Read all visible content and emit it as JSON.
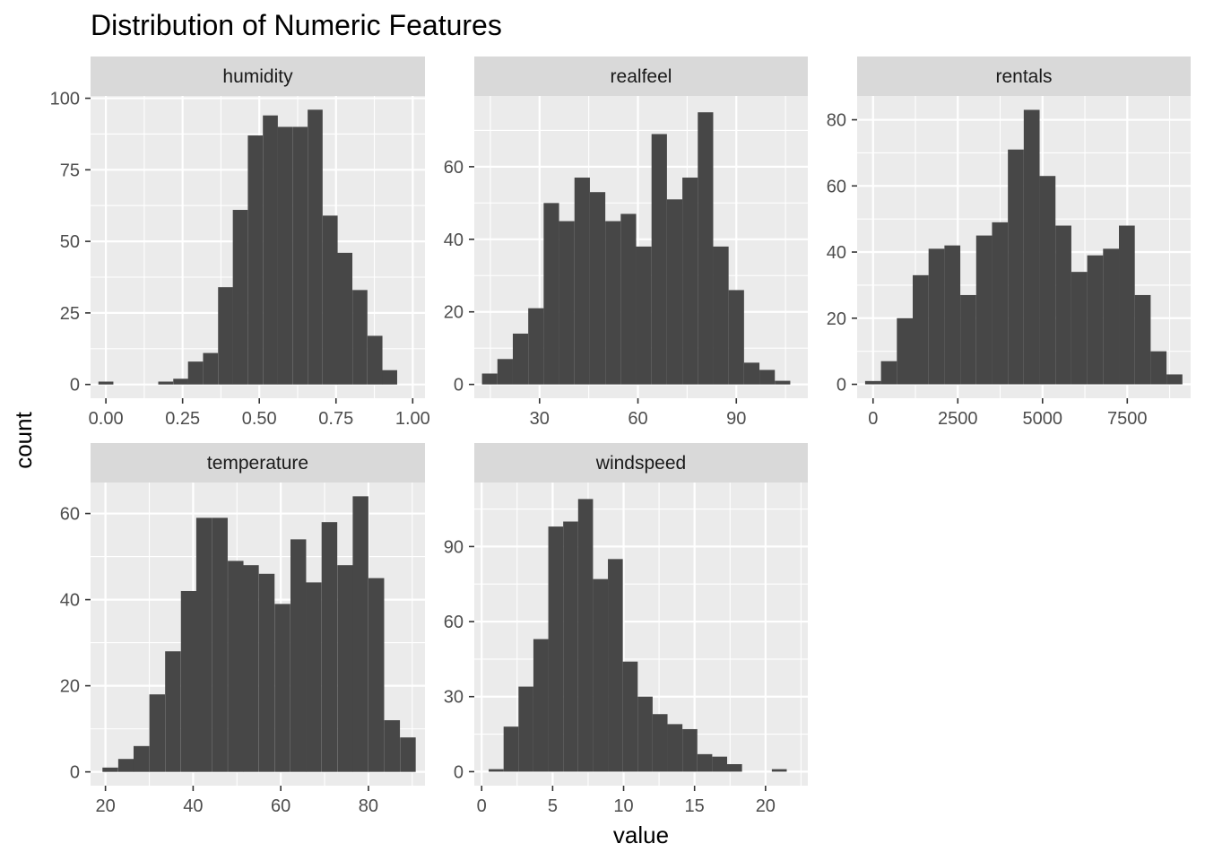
{
  "chart_data": {
    "type": "bar",
    "title": "Distribution of Numeric Features",
    "xlabel": "value",
    "ylabel": "count",
    "background": "#ebebeb",
    "strip_color": "#d9d9d9",
    "bar_color": "#474747",
    "grid_color": "#ffffff",
    "panels": [
      {
        "name": "humidity",
        "xlim": [
          -0.05,
          1.04
        ],
        "ylim": [
          -4.8,
          100.8
        ],
        "xticks": [
          0,
          0.25,
          0.5,
          0.75,
          1
        ],
        "xtick_labels": [
          "0.00",
          "0.25",
          "0.50",
          "0.75",
          "1.00"
        ],
        "yticks": [
          0,
          25,
          50,
          75,
          100
        ],
        "ytick_labels": [
          "0",
          "25",
          "50",
          "75",
          "100"
        ],
        "bin_width": 0.0487,
        "bins": [
          {
            "x": 0.0,
            "count": 1
          },
          {
            "x": 0.0487,
            "count": 0
          },
          {
            "x": 0.0974,
            "count": 0
          },
          {
            "x": 0.146,
            "count": 0
          },
          {
            "x": 0.195,
            "count": 1
          },
          {
            "x": 0.244,
            "count": 2
          },
          {
            "x": 0.292,
            "count": 8
          },
          {
            "x": 0.341,
            "count": 11
          },
          {
            "x": 0.39,
            "count": 34
          },
          {
            "x": 0.438,
            "count": 61
          },
          {
            "x": 0.487,
            "count": 87
          },
          {
            "x": 0.536,
            "count": 94
          },
          {
            "x": 0.584,
            "count": 90
          },
          {
            "x": 0.633,
            "count": 90
          },
          {
            "x": 0.682,
            "count": 96
          },
          {
            "x": 0.731,
            "count": 59
          },
          {
            "x": 0.779,
            "count": 46
          },
          {
            "x": 0.828,
            "count": 33
          },
          {
            "x": 0.877,
            "count": 17
          },
          {
            "x": 0.925,
            "count": 5
          }
        ]
      },
      {
        "name": "realfeel",
        "xlim": [
          10.1,
          111.8
        ],
        "ylim": [
          -3.8,
          79.5
        ],
        "xticks": [
          30,
          60,
          90
        ],
        "xtick_labels": [
          "30",
          "60",
          "90"
        ],
        "yticks": [
          0,
          20,
          40,
          60
        ],
        "ytick_labels": [
          "0",
          "20",
          "40",
          "60"
        ],
        "bin_width": 4.7,
        "bins": [
          {
            "x": 14.8,
            "count": 3
          },
          {
            "x": 19.5,
            "count": 7
          },
          {
            "x": 24.2,
            "count": 14
          },
          {
            "x": 28.9,
            "count": 21
          },
          {
            "x": 33.6,
            "count": 50
          },
          {
            "x": 38.3,
            "count": 45
          },
          {
            "x": 43.0,
            "count": 57
          },
          {
            "x": 47.7,
            "count": 53
          },
          {
            "x": 52.4,
            "count": 45
          },
          {
            "x": 57.1,
            "count": 47
          },
          {
            "x": 61.8,
            "count": 38
          },
          {
            "x": 66.5,
            "count": 69
          },
          {
            "x": 71.2,
            "count": 51
          },
          {
            "x": 75.9,
            "count": 57
          },
          {
            "x": 80.6,
            "count": 75
          },
          {
            "x": 85.3,
            "count": 38
          },
          {
            "x": 90.0,
            "count": 26
          },
          {
            "x": 94.7,
            "count": 6
          },
          {
            "x": 99.4,
            "count": 4
          },
          {
            "x": 104.1,
            "count": 1
          }
        ]
      },
      {
        "name": "rentals",
        "xlim": [
          -470,
          9370
        ],
        "ylim": [
          -4.2,
          87.2
        ],
        "xticks": [
          0,
          2500,
          5000,
          7500
        ],
        "xtick_labels": [
          "0",
          "2500",
          "5000",
          "7500"
        ],
        "yticks": [
          0,
          20,
          40,
          60,
          80
        ],
        "ytick_labels": [
          "0",
          "20",
          "40",
          "60",
          "80"
        ],
        "bin_width": 468,
        "bins": [
          {
            "x": 0,
            "count": 1
          },
          {
            "x": 468,
            "count": 7
          },
          {
            "x": 936,
            "count": 20
          },
          {
            "x": 1404,
            "count": 33
          },
          {
            "x": 1872,
            "count": 41
          },
          {
            "x": 2340,
            "count": 42
          },
          {
            "x": 2808,
            "count": 27
          },
          {
            "x": 3276,
            "count": 45
          },
          {
            "x": 3744,
            "count": 49
          },
          {
            "x": 4212,
            "count": 71
          },
          {
            "x": 4680,
            "count": 83
          },
          {
            "x": 5148,
            "count": 63
          },
          {
            "x": 5616,
            "count": 48
          },
          {
            "x": 6084,
            "count": 34
          },
          {
            "x": 6552,
            "count": 39
          },
          {
            "x": 7020,
            "count": 41
          },
          {
            "x": 7488,
            "count": 48
          },
          {
            "x": 7956,
            "count": 27
          },
          {
            "x": 8424,
            "count": 10
          },
          {
            "x": 8892,
            "count": 3
          }
        ]
      },
      {
        "name": "temperature",
        "xlim": [
          16.6,
          92.9
        ],
        "ylim": [
          -3.2,
          67.2
        ],
        "xticks": [
          20,
          40,
          60,
          80
        ],
        "xtick_labels": [
          "20",
          "40",
          "60",
          "80"
        ],
        "yticks": [
          0,
          20,
          40,
          60
        ],
        "ytick_labels": [
          "0",
          "20",
          "40",
          "60"
        ],
        "bin_width": 3.57,
        "bins": [
          {
            "x": 21.1,
            "count": 1
          },
          {
            "x": 24.7,
            "count": 3
          },
          {
            "x": 28.2,
            "count": 6
          },
          {
            "x": 31.8,
            "count": 18
          },
          {
            "x": 35.4,
            "count": 28
          },
          {
            "x": 39.0,
            "count": 42
          },
          {
            "x": 42.5,
            "count": 59
          },
          {
            "x": 46.1,
            "count": 59
          },
          {
            "x": 49.7,
            "count": 49
          },
          {
            "x": 53.2,
            "count": 48
          },
          {
            "x": 56.8,
            "count": 46
          },
          {
            "x": 60.4,
            "count": 39
          },
          {
            "x": 64.0,
            "count": 54
          },
          {
            "x": 67.5,
            "count": 44
          },
          {
            "x": 71.1,
            "count": 58
          },
          {
            "x": 74.7,
            "count": 48
          },
          {
            "x": 78.2,
            "count": 64
          },
          {
            "x": 81.8,
            "count": 45
          },
          {
            "x": 85.4,
            "count": 12
          },
          {
            "x": 89.0,
            "count": 8
          }
        ]
      },
      {
        "name": "windspeed",
        "xlim": [
          -0.52,
          22.98
        ],
        "ylim": [
          -5.6,
          115.6
        ],
        "xticks": [
          0,
          5,
          10,
          15,
          20
        ],
        "xtick_labels": [
          "0",
          "5",
          "10",
          "15",
          "20"
        ],
        "yticks": [
          0,
          30,
          60,
          90
        ],
        "ytick_labels": [
          "0",
          "30",
          "60",
          "90"
        ],
        "bin_width": 1.05,
        "bins": [
          {
            "x": 1.02,
            "count": 1
          },
          {
            "x": 2.07,
            "count": 18
          },
          {
            "x": 3.12,
            "count": 34
          },
          {
            "x": 4.17,
            "count": 53
          },
          {
            "x": 5.22,
            "count": 98
          },
          {
            "x": 6.27,
            "count": 100
          },
          {
            "x": 7.32,
            "count": 109
          },
          {
            "x": 8.37,
            "count": 77
          },
          {
            "x": 9.42,
            "count": 85
          },
          {
            "x": 10.47,
            "count": 44
          },
          {
            "x": 11.52,
            "count": 30
          },
          {
            "x": 12.57,
            "count": 23
          },
          {
            "x": 13.62,
            "count": 19
          },
          {
            "x": 14.67,
            "count": 17
          },
          {
            "x": 15.72,
            "count": 7
          },
          {
            "x": 16.77,
            "count": 6
          },
          {
            "x": 17.82,
            "count": 3
          },
          {
            "x": 18.87,
            "count": 0
          },
          {
            "x": 19.92,
            "count": 0
          },
          {
            "x": 20.97,
            "count": 1
          }
        ]
      }
    ]
  }
}
